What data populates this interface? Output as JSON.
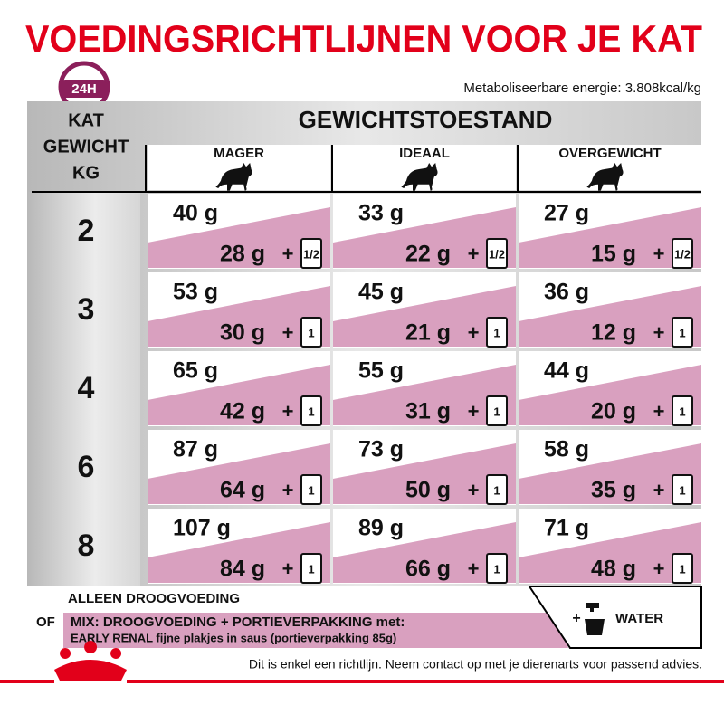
{
  "title": "VOEDINGSRICHTLIJNEN VOOR JE KAT",
  "badge": "24H",
  "energy": "Metaboliseerbare energie: 3.808kcal/kg",
  "table": {
    "weight_header": [
      "KAT",
      "GEWICHT",
      "KG"
    ],
    "group_header": "GEWICHTSTOESTAND",
    "columns": [
      "MAGER",
      "IDEAAL",
      "OVERGEWICHT"
    ],
    "rows": [
      {
        "weight": "2",
        "cells": [
          {
            "dry": "40 g",
            "mix": "28 g",
            "plus": "+",
            "pouch": "1/2"
          },
          {
            "dry": "33 g",
            "mix": "22 g",
            "plus": "+",
            "pouch": "1/2"
          },
          {
            "dry": "27 g",
            "mix": "15 g",
            "plus": "+",
            "pouch": "1/2"
          }
        ]
      },
      {
        "weight": "3",
        "cells": [
          {
            "dry": "53 g",
            "mix": "30 g",
            "plus": "+",
            "pouch": "1"
          },
          {
            "dry": "45 g",
            "mix": "21 g",
            "plus": "+",
            "pouch": "1"
          },
          {
            "dry": "36 g",
            "mix": "12 g",
            "plus": "+",
            "pouch": "1"
          }
        ]
      },
      {
        "weight": "4",
        "cells": [
          {
            "dry": "65 g",
            "mix": "42 g",
            "plus": "+",
            "pouch": "1"
          },
          {
            "dry": "55 g",
            "mix": "31 g",
            "plus": "+",
            "pouch": "1"
          },
          {
            "dry": "44 g",
            "mix": "20 g",
            "plus": "+",
            "pouch": "1"
          }
        ]
      },
      {
        "weight": "6",
        "cells": [
          {
            "dry": "87 g",
            "mix": "64 g",
            "plus": "+",
            "pouch": "1"
          },
          {
            "dry": "73 g",
            "mix": "50 g",
            "plus": "+",
            "pouch": "1"
          },
          {
            "dry": "58 g",
            "mix": "35 g",
            "plus": "+",
            "pouch": "1"
          }
        ]
      },
      {
        "weight": "8",
        "cells": [
          {
            "dry": "107 g",
            "mix": "84 g",
            "plus": "+",
            "pouch": "1"
          },
          {
            "dry": "89 g",
            "mix": "66 g",
            "plus": "+",
            "pouch": "1"
          },
          {
            "dry": "71 g",
            "mix": "48 g",
            "plus": "+",
            "pouch": "1"
          }
        ]
      }
    ]
  },
  "legend": {
    "dry_only": "ALLEEN DROOGVOEDING",
    "or": "OF",
    "mix": "MIX: DROOGVOEDING + PORTIEVERPAKKING met:",
    "product": "EARLY RENAL fijne plakjes in saus (portieverpakking 85g)",
    "water_plus": "+",
    "water": "WATER"
  },
  "footer": "Dit is enkel een richtlijn. Neem contact op met je dierenarts voor passend advies."
}
